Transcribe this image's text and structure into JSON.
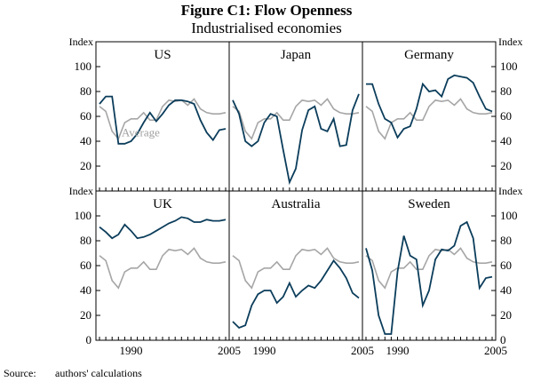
{
  "chart_data": {
    "type": "line",
    "title": "Figure C1: Flow Openness",
    "subtitle": "Industrialised economies",
    "ylabel": "Index",
    "ylim": [
      0,
      100
    ],
    "yticks": [
      "0",
      "20",
      "40",
      "60",
      "80",
      "100"
    ],
    "xlim": [
      1985,
      2005
    ],
    "xticks": [
      "1990",
      "2005"
    ],
    "source_label": "Source:",
    "source_text": "authors' calculations",
    "average_label": "Average",
    "colors": {
      "country": "#0b3d5b",
      "average": "#a6a6a6",
      "frame": "#000000"
    },
    "average": {
      "x": [
        1985,
        1986,
        1987,
        1988,
        1989,
        1990,
        1991,
        1992,
        1993,
        1994,
        1995,
        1996,
        1997,
        1998,
        1999,
        2000,
        2001,
        2002,
        2003,
        2004,
        2005
      ],
      "y": [
        68,
        64,
        48,
        42,
        55,
        58,
        58,
        63,
        57,
        57,
        68,
        73,
        72,
        73,
        69,
        74,
        66,
        63,
        62,
        62,
        63
      ]
    },
    "panels": [
      {
        "name": "US",
        "x": [
          1985,
          1986,
          1987,
          1988,
          1989,
          1990,
          1991,
          1992,
          1993,
          1994,
          1995,
          1996,
          1997,
          1998,
          1999,
          2000,
          2001,
          2002,
          2003,
          2004,
          2005
        ],
        "y": [
          70,
          76,
          76,
          38,
          38,
          40,
          46,
          55,
          63,
          56,
          62,
          69,
          73,
          73,
          72,
          70,
          57,
          47,
          41,
          49,
          50
        ]
      },
      {
        "name": "Japan",
        "x": [
          1985,
          1986,
          1987,
          1988,
          1989,
          1990,
          1991,
          1992,
          1993,
          1994,
          1995,
          1996,
          1997,
          1998,
          1999,
          2000,
          2001,
          2002,
          2003,
          2004,
          2005
        ],
        "y": [
          73,
          62,
          40,
          36,
          40,
          55,
          62,
          60,
          33,
          7,
          18,
          49,
          65,
          68,
          50,
          48,
          58,
          36,
          37,
          65,
          78
        ]
      },
      {
        "name": "Germany",
        "x": [
          1985,
          1986,
          1987,
          1988,
          1989,
          1990,
          1991,
          1992,
          1993,
          1994,
          1995,
          1996,
          1997,
          1998,
          1999,
          2000,
          2001,
          2002,
          2003,
          2004,
          2005
        ],
        "y": [
          86,
          86,
          70,
          58,
          55,
          43,
          50,
          52,
          66,
          86,
          80,
          81,
          76,
          90,
          93,
          92,
          91,
          87,
          76,
          66,
          64
        ]
      },
      {
        "name": "UK",
        "x": [
          1985,
          1986,
          1987,
          1988,
          1989,
          1990,
          1991,
          1992,
          1993,
          1994,
          1995,
          1996,
          1997,
          1998,
          1999,
          2000,
          2001,
          2002,
          2003,
          2004,
          2005
        ],
        "y": [
          91,
          87,
          82,
          85,
          93,
          88,
          82,
          83,
          85,
          88,
          91,
          94,
          96,
          99,
          98,
          95,
          95,
          97,
          96,
          96,
          97
        ]
      },
      {
        "name": "Australia",
        "x": [
          1985,
          1986,
          1987,
          1988,
          1989,
          1990,
          1991,
          1992,
          1993,
          1994,
          1995,
          1996,
          1997,
          1998,
          1999,
          2000,
          2001,
          2002,
          2003,
          2004,
          2005
        ],
        "y": [
          15,
          10,
          12,
          28,
          37,
          40,
          40,
          30,
          35,
          46,
          35,
          40,
          44,
          42,
          48,
          56,
          64,
          58,
          50,
          38,
          34
        ]
      },
      {
        "name": "Sweden",
        "x": [
          1985,
          1986,
          1987,
          1988,
          1989,
          1990,
          1991,
          1992,
          1993,
          1994,
          1995,
          1996,
          1997,
          1998,
          1999,
          2000,
          2001,
          2002,
          2003,
          2004,
          2005
        ],
        "y": [
          74,
          56,
          20,
          5,
          5,
          55,
          84,
          68,
          65,
          28,
          40,
          65,
          73,
          72,
          76,
          92,
          95,
          82,
          42,
          50,
          51
        ]
      }
    ]
  }
}
